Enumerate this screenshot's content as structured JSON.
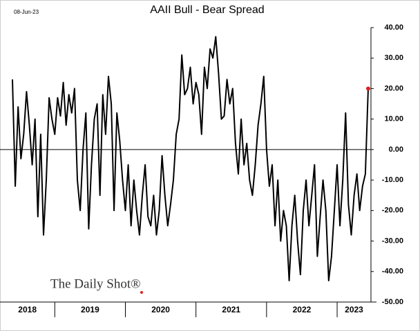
{
  "chart_data": {
    "type": "line",
    "title": "AAII Bull - Bear Spread",
    "subtitle": "08-Jun-23",
    "source": "The Daily Shot®",
    "xlim": [
      2018.4,
      2023.44
    ],
    "xticks": [
      2019,
      2020,
      2021,
      2022,
      2023
    ],
    "year_labels": [
      "2018",
      "2019",
      "2020",
      "2021",
      "2022",
      "2023"
    ],
    "ylim": [
      -50,
      40
    ],
    "yticks": [
      {
        "value": 40,
        "label": "40.00"
      },
      {
        "value": 30,
        "label": "30.00"
      },
      {
        "value": 20,
        "label": "20.00"
      },
      {
        "value": 10,
        "label": "10.00"
      },
      {
        "value": 0,
        "label": "0.00"
      },
      {
        "value": -10,
        "label": "-10.00"
      },
      {
        "value": -20,
        "label": "-20.00"
      },
      {
        "value": -30,
        "label": "-30.00"
      },
      {
        "value": -40,
        "label": "-40.00"
      },
      {
        "value": -50,
        "label": "-50.00"
      }
    ],
    "grid": false,
    "series": [
      {
        "name": "AAII Bull - Bear Spread",
        "color": "#000000",
        "highlight_color": "#e02020",
        "x": [
          2018.4,
          2018.44,
          2018.48,
          2018.52,
          2018.56,
          2018.6,
          2018.64,
          2018.68,
          2018.72,
          2018.76,
          2018.8,
          2018.84,
          2018.88,
          2018.92,
          2018.96,
          2019.0,
          2019.04,
          2019.08,
          2019.12,
          2019.16,
          2019.2,
          2019.24,
          2019.28,
          2019.32,
          2019.36,
          2019.4,
          2019.44,
          2019.48,
          2019.52,
          2019.56,
          2019.6,
          2019.64,
          2019.68,
          2019.72,
          2019.76,
          2019.8,
          2019.84,
          2019.88,
          2019.92,
          2019.96,
          2020.0,
          2020.04,
          2020.08,
          2020.12,
          2020.16,
          2020.2,
          2020.24,
          2020.28,
          2020.32,
          2020.36,
          2020.4,
          2020.44,
          2020.48,
          2020.52,
          2020.56,
          2020.6,
          2020.64,
          2020.68,
          2020.72,
          2020.76,
          2020.8,
          2020.84,
          2020.88,
          2020.92,
          2020.96,
          2021.0,
          2021.04,
          2021.08,
          2021.12,
          2021.16,
          2021.2,
          2021.24,
          2021.28,
          2021.32,
          2021.36,
          2021.4,
          2021.44,
          2021.48,
          2021.52,
          2021.56,
          2021.6,
          2021.64,
          2021.68,
          2021.72,
          2021.76,
          2021.8,
          2021.84,
          2021.88,
          2021.92,
          2021.96,
          2022.0,
          2022.04,
          2022.08,
          2022.12,
          2022.16,
          2022.2,
          2022.24,
          2022.28,
          2022.32,
          2022.36,
          2022.4,
          2022.44,
          2022.48,
          2022.52,
          2022.56,
          2022.6,
          2022.64,
          2022.68,
          2022.72,
          2022.76,
          2022.8,
          2022.84,
          2022.88,
          2022.92,
          2022.96,
          2023.0,
          2023.04,
          2023.08,
          2023.12,
          2023.16,
          2023.2,
          2023.24,
          2023.28,
          2023.32,
          2023.36,
          2023.4,
          2023.44
        ],
        "values": [
          23,
          -12,
          14,
          -3,
          5,
          19,
          8,
          -5,
          10,
          -22,
          5,
          -28,
          -10,
          17,
          10,
          5,
          17,
          11,
          22,
          8,
          18,
          12,
          20,
          -10,
          -20,
          0,
          12,
          -26,
          -5,
          10,
          15,
          -15,
          18,
          5,
          24,
          15,
          -20,
          12,
          3,
          -10,
          -20,
          -5,
          -25,
          -10,
          -20,
          -28,
          -15,
          -5,
          -22,
          -25,
          -15,
          -28,
          -20,
          -2,
          -15,
          -25,
          -18,
          -10,
          5,
          10,
          31,
          18,
          20,
          27,
          15,
          22,
          18,
          5,
          27,
          20,
          33,
          30,
          37,
          25,
          10,
          11,
          23,
          15,
          20,
          2,
          -8,
          10,
          -5,
          2,
          -10,
          -15,
          -5,
          8,
          15,
          24,
          0,
          -12,
          -5,
          -25,
          -10,
          -30,
          -20,
          -25,
          -43,
          -25,
          -15,
          -30,
          -41,
          -20,
          -10,
          -25,
          -15,
          -5,
          -35,
          -22,
          -10,
          -20,
          -43,
          -35,
          -20,
          -5,
          -25,
          -10,
          12,
          -18,
          -28,
          -15,
          -8,
          -20,
          -12,
          -8,
          20
        ]
      }
    ]
  }
}
